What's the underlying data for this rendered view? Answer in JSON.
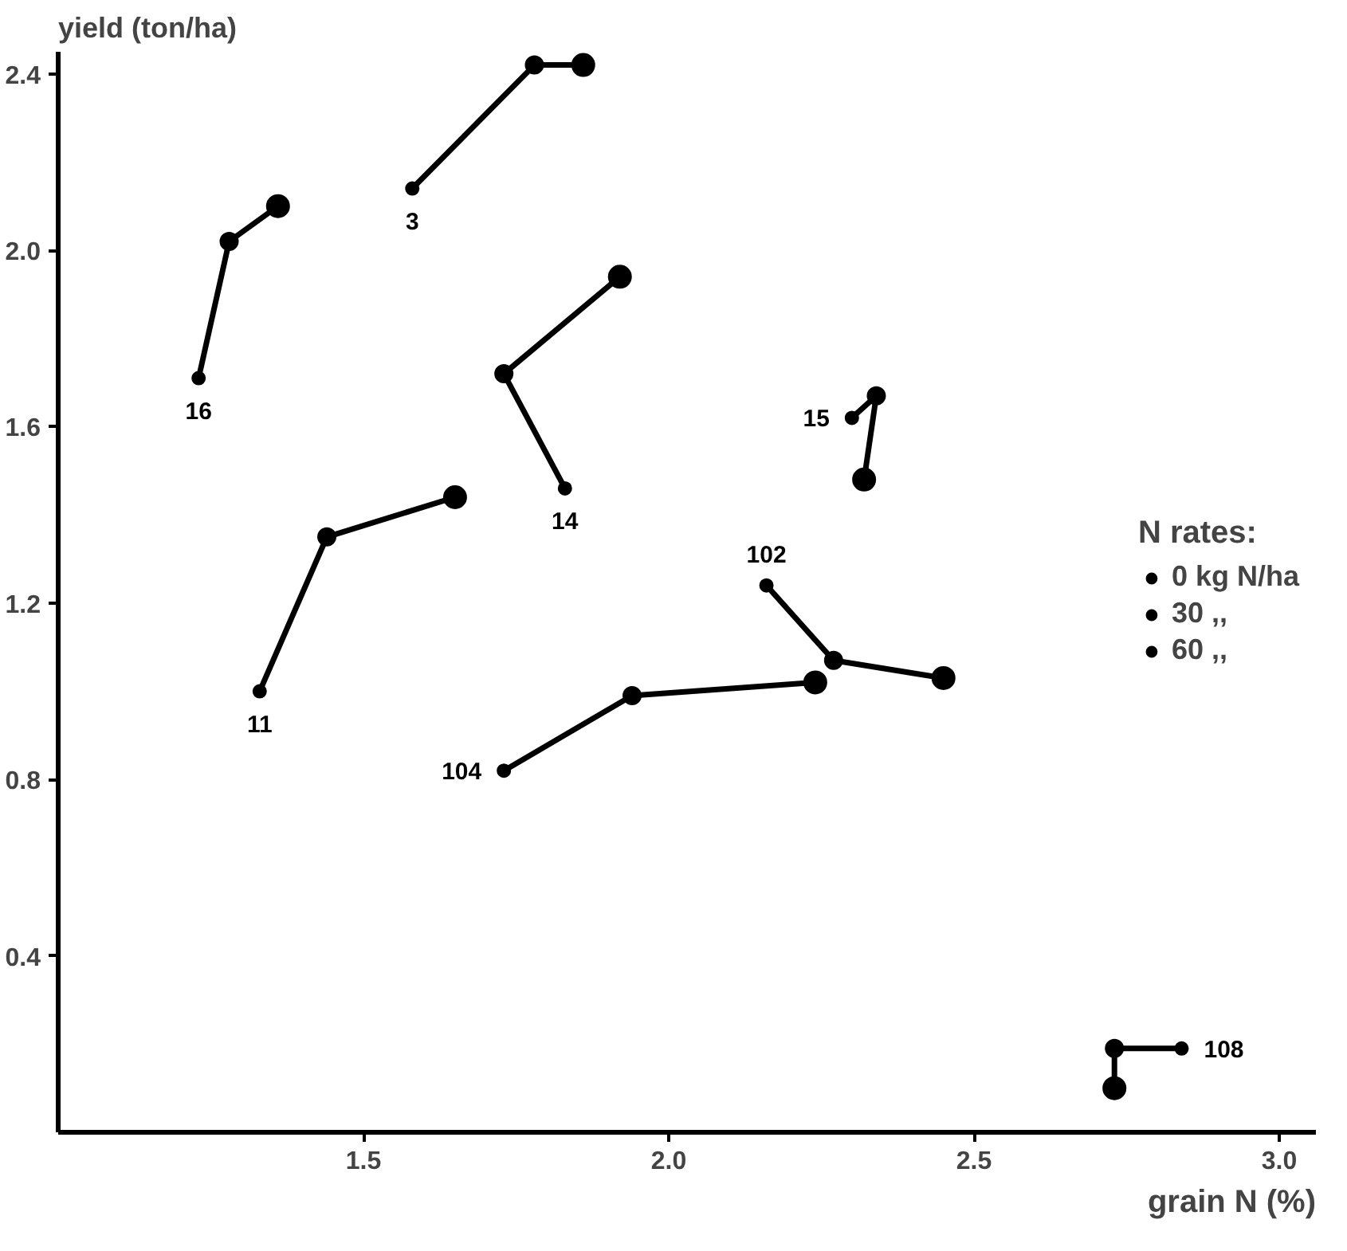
{
  "chart_data": {
    "type": "scatter",
    "xlabel": "grain N (%)",
    "ylabel": "yield (ton/ha)",
    "legend_title": "N rates:",
    "xlim": [
      1.0,
      3.06
    ],
    "ylim": [
      0,
      2.45
    ],
    "xticks": [
      {
        "value": 1.5,
        "label": "1.5"
      },
      {
        "value": 2.0,
        "label": "2.0"
      },
      {
        "value": 2.5,
        "label": "2.5"
      },
      {
        "value": 3.0,
        "label": "3.0"
      }
    ],
    "yticks": [
      {
        "value": 0.4,
        "label": "0.4"
      },
      {
        "value": 0.8,
        "label": "0.8"
      },
      {
        "value": 1.2,
        "label": "1.2"
      },
      {
        "value": 1.6,
        "label": "1.6"
      },
      {
        "value": 2.0,
        "label": "2.0"
      },
      {
        "value": 2.4,
        "label": "2.4"
      }
    ],
    "grid": false,
    "legend": "right",
    "marker": "circle",
    "line_style": "solid",
    "series": [
      {
        "type": "line",
        "marker": "none",
        "name": "3",
        "color": "#000000",
        "x": [
          1.58,
          1.78,
          1.86
        ],
        "values": [
          2.14,
          2.42,
          2.42
        ]
      },
      {
        "type": "line",
        "marker": "none",
        "name": "16",
        "color": "#000000",
        "x": [
          1.23,
          1.28,
          1.36
        ],
        "values": [
          1.71,
          2.02,
          2.1
        ]
      },
      {
        "type": "line",
        "marker": "none",
        "name": "14",
        "color": "#000000",
        "x": [
          1.83,
          1.73,
          1.92
        ],
        "values": [
          1.46,
          1.72,
          1.94
        ]
      },
      {
        "type": "line",
        "marker": "none",
        "name": "15",
        "color": "#000000",
        "x": [
          2.3,
          2.34,
          2.32
        ],
        "values": [
          1.62,
          1.67,
          1.48
        ]
      },
      {
        "type": "line",
        "marker": "none",
        "name": "11",
        "color": "#000000",
        "x": [
          1.33,
          1.44,
          1.65
        ],
        "values": [
          1.0,
          1.35,
          1.44
        ]
      },
      {
        "type": "line",
        "marker": "none",
        "name": "102",
        "color": "#000000",
        "x": [
          2.16,
          2.27,
          2.45
        ],
        "values": [
          1.24,
          1.07,
          1.03
        ]
      },
      {
        "type": "line",
        "marker": "none",
        "name": "104",
        "color": "#000000",
        "x": [
          1.73,
          1.94,
          2.24
        ],
        "values": [
          0.82,
          0.99,
          1.02
        ]
      },
      {
        "type": "line",
        "marker": "none",
        "name": "108",
        "color": "#000000",
        "x": [
          2.84,
          2.73,
          2.73
        ],
        "values": [
          0.19,
          0.19,
          0.1
        ]
      },
      {
        "name": "0 kg N/ha",
        "color": "#000000",
        "x": [
          1.58,
          1.23,
          1.83,
          2.3,
          1.33,
          2.16,
          1.73,
          2.84
        ],
        "values": [
          2.14,
          1.71,
          1.46,
          1.62,
          1.0,
          1.24,
          0.82,
          0.19
        ]
      },
      {
        "name": "30 ,,",
        "color": "#000000",
        "x": [
          1.78,
          1.28,
          1.73,
          2.34,
          1.44,
          2.27,
          1.94,
          2.73
        ],
        "values": [
          2.42,
          2.02,
          1.72,
          1.67,
          1.35,
          1.07,
          0.99,
          0.19
        ]
      },
      {
        "name": "60 ,,",
        "color": "#000000",
        "x": [
          1.86,
          1.36,
          1.92,
          2.32,
          1.65,
          2.45,
          2.24,
          2.73
        ],
        "values": [
          2.42,
          2.1,
          1.94,
          1.48,
          1.44,
          1.03,
          1.02,
          0.1
        ]
      }
    ]
  }
}
